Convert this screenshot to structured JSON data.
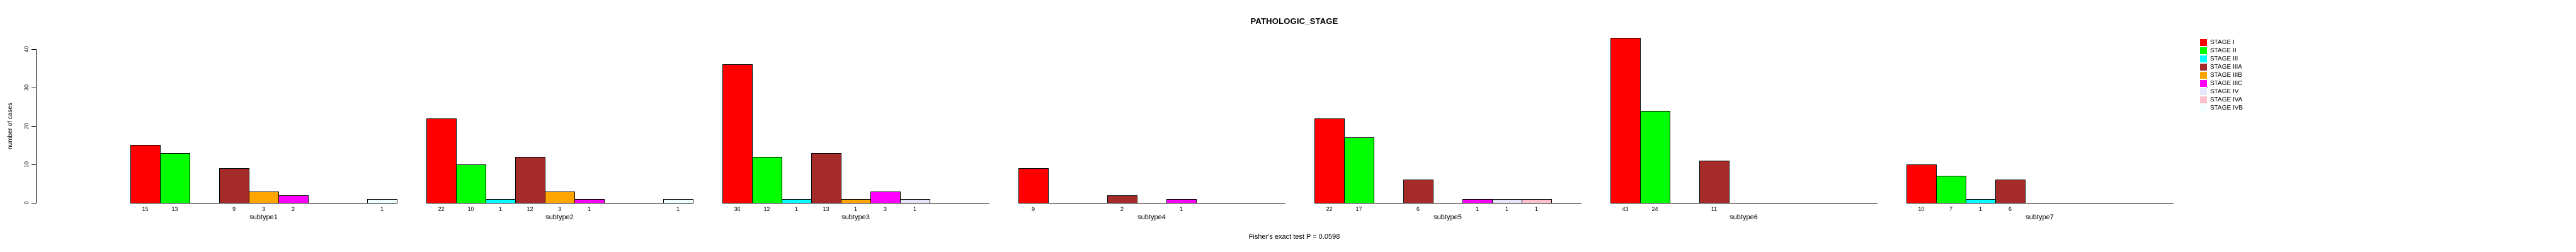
{
  "chart_data": {
    "type": "bar",
    "title": "PATHOLOGIC_STAGE",
    "xlabel": "",
    "ylabel": "number of cases",
    "annotation": "Fisher's exact test P = 0.0598",
    "ylim": [
      0,
      40
    ],
    "yticks": [
      "0",
      "10",
      "20",
      "30",
      "40"
    ],
    "grid": false,
    "legend_position": "right-outside",
    "bar_value_labels": true,
    "categories": [
      "subtype1",
      "subtype2",
      "subtype3",
      "subtype4",
      "subtype5",
      "subtype6",
      "subtype7"
    ],
    "series": [
      {
        "name": "STAGE I",
        "color": "#FF0000",
        "values": [
          15,
          22,
          36,
          9,
          22,
          43,
          10
        ]
      },
      {
        "name": "STAGE II",
        "color": "#00FF00",
        "values": [
          13,
          10,
          12,
          0,
          17,
          24,
          7
        ]
      },
      {
        "name": "STAGE III",
        "color": "#00FFFF",
        "values": [
          0,
          1,
          1,
          0,
          0,
          0,
          1
        ]
      },
      {
        "name": "STAGE IIIA",
        "color": "#A52A2A",
        "values": [
          9,
          12,
          13,
          2,
          6,
          11,
          6
        ]
      },
      {
        "name": "STAGE IIIB",
        "color": "#FFA500",
        "values": [
          3,
          3,
          1,
          0,
          0,
          0,
          0
        ]
      },
      {
        "name": "STAGE IIIC",
        "color": "#FF00FF",
        "values": [
          2,
          1,
          3,
          1,
          1,
          0,
          0
        ]
      },
      {
        "name": "STAGE IV",
        "color": "#E6E6FA",
        "values": [
          0,
          0,
          1,
          0,
          1,
          0,
          0
        ]
      },
      {
        "name": "STAGE IVA",
        "color": "#FFC0CB",
        "values": [
          0,
          0,
          0,
          0,
          1,
          0,
          0
        ]
      },
      {
        "name": "STAGE IVB",
        "color": "#F0FFFF",
        "values": [
          1,
          1,
          0,
          0,
          0,
          0,
          0
        ]
      }
    ]
  }
}
